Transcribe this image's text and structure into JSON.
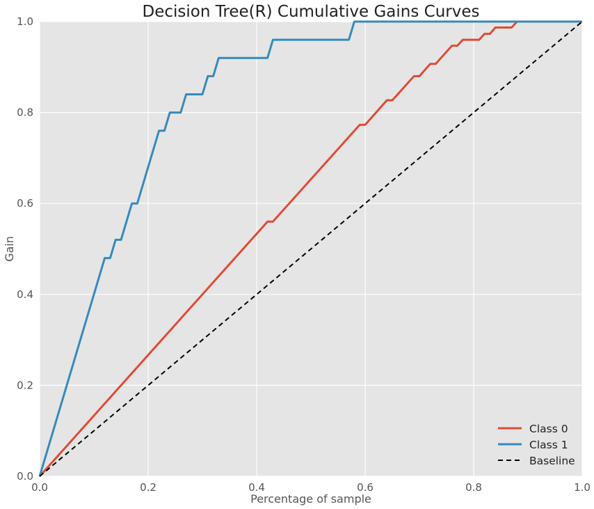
{
  "chart_data": {
    "type": "line",
    "title": "Decision Tree(R) Cumulative Gains Curves",
    "xlabel": "Percentage of sample",
    "ylabel": "Gain",
    "xlim": [
      0,
      1
    ],
    "ylim": [
      0,
      1
    ],
    "xticks": [
      "0.0",
      "0.2",
      "0.4",
      "0.6",
      "0.8",
      "1.0"
    ],
    "yticks": [
      "0.0",
      "0.2",
      "0.4",
      "0.6",
      "0.8",
      "1.0"
    ],
    "grid": true,
    "legend_position": "bottom-right",
    "series": [
      {
        "name": "Class 0",
        "color": "#E24A33",
        "style": "solid",
        "x": [
          0,
          0.42,
          0.43,
          0.59,
          0.6,
          0.64,
          0.65,
          0.69,
          0.7,
          0.72,
          0.73,
          0.76,
          0.77,
          0.78,
          0.81,
          0.82,
          0.83,
          0.84,
          0.87,
          0.88,
          1.0
        ],
        "y": [
          0,
          0.56,
          0.56,
          0.773,
          0.773,
          0.827,
          0.827,
          0.88,
          0.88,
          0.907,
          0.907,
          0.947,
          0.947,
          0.96,
          0.96,
          0.973,
          0.973,
          0.987,
          0.987,
          1.0,
          1.0
        ]
      },
      {
        "name": "Class 1",
        "color": "#348ABD",
        "style": "solid",
        "x": [
          0,
          0.12,
          0.13,
          0.14,
          0.15,
          0.17,
          0.18,
          0.22,
          0.23,
          0.24,
          0.26,
          0.27,
          0.3,
          0.31,
          0.32,
          0.33,
          0.42,
          0.43,
          0.57,
          0.58,
          1.0
        ],
        "y": [
          0,
          0.48,
          0.48,
          0.52,
          0.52,
          0.6,
          0.6,
          0.76,
          0.76,
          0.8,
          0.8,
          0.84,
          0.84,
          0.88,
          0.88,
          0.92,
          0.92,
          0.96,
          0.96,
          1.0,
          1.0
        ]
      },
      {
        "name": "Baseline",
        "color": "#000000",
        "style": "dashed",
        "x": [
          0,
          1
        ],
        "y": [
          0,
          1
        ]
      }
    ]
  }
}
